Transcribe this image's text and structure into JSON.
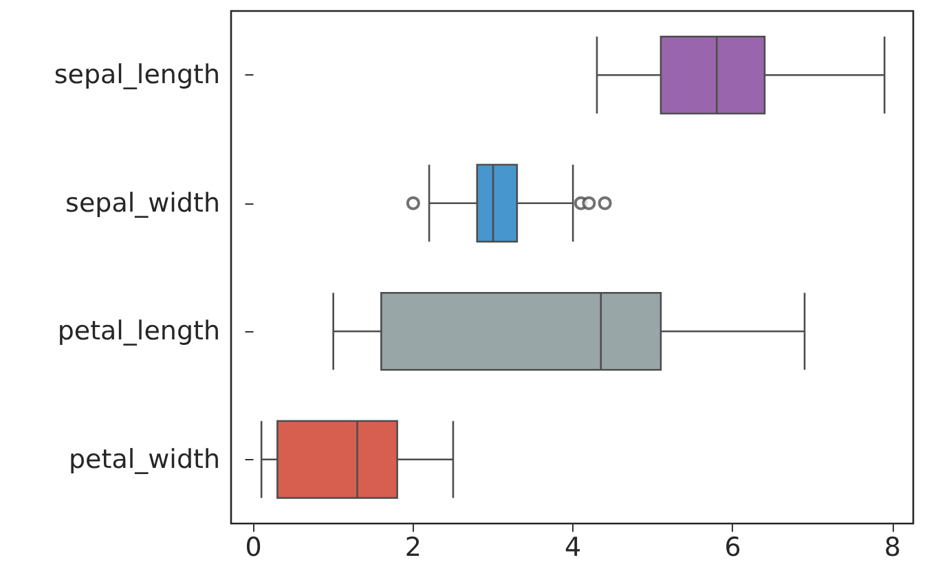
{
  "chart_data": {
    "type": "box",
    "orientation": "horizontal",
    "categories": [
      "sepal_length",
      "sepal_width",
      "petal_length",
      "petal_width"
    ],
    "colors": [
      "#9966ad",
      "#4796ce",
      "#99a6a7",
      "#d65f4f"
    ],
    "boxes": [
      {
        "low": 4.3,
        "q1": 5.1,
        "median": 5.8,
        "q3": 6.4,
        "high": 7.9
      },
      {
        "low": 2.2,
        "q1": 2.8,
        "median": 3.0,
        "q3": 3.3,
        "high": 4.0,
        "outliers": [
          2.0,
          4.1,
          4.2,
          4.4
        ]
      },
      {
        "low": 1.0,
        "q1": 1.6,
        "median": 4.35,
        "q3": 5.1,
        "high": 6.9
      },
      {
        "low": 0.1,
        "q1": 0.3,
        "median": 1.3,
        "q3": 1.8,
        "high": 2.5
      }
    ],
    "xlim": [
      -0.28,
      8.26
    ],
    "xticks": [
      0,
      2,
      4,
      6,
      8
    ],
    "grid": false
  }
}
